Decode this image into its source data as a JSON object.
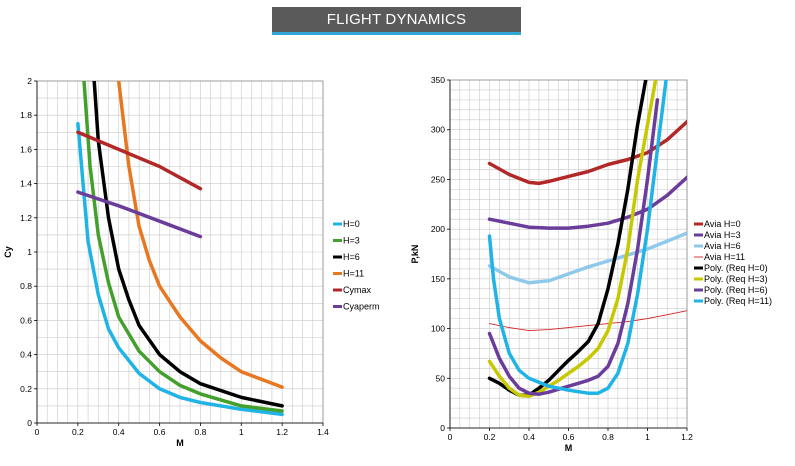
{
  "header": {
    "title": "FLIGHT DYNAMICS"
  },
  "chart_data": [
    {
      "type": "line",
      "xlabel": "M",
      "ylabel": "Cy",
      "xlim": [
        0,
        1.4
      ],
      "ylim": [
        0,
        2
      ],
      "xticks": [
        "0",
        "0.2",
        "0.4",
        "0.6",
        "0.8",
        "1",
        "1.2",
        "1.4"
      ],
      "yticks": [
        "0",
        "0.2",
        "0.4",
        "0.6",
        "0.8",
        "1",
        "1.2",
        "1.4",
        "1.6",
        "1.8",
        "2"
      ],
      "grid": true,
      "legend_position": "right",
      "series": [
        {
          "name": "H=0",
          "color": "#1fb3e6",
          "width": 3.5,
          "x": [
            0.2,
            0.25,
            0.3,
            0.35,
            0.4,
            0.5,
            0.6,
            0.7,
            0.8,
            1.0,
            1.2
          ],
          "y": [
            1.75,
            1.06,
            0.75,
            0.55,
            0.44,
            0.29,
            0.2,
            0.15,
            0.12,
            0.08,
            0.05
          ]
        },
        {
          "name": "H=3",
          "color": "#43a02d",
          "width": 3.5,
          "x": [
            0.23,
            0.26,
            0.3,
            0.35,
            0.4,
            0.5,
            0.6,
            0.7,
            0.8,
            1.0,
            1.2
          ],
          "y": [
            2.0,
            1.5,
            1.1,
            0.82,
            0.62,
            0.42,
            0.3,
            0.22,
            0.17,
            0.1,
            0.07
          ]
        },
        {
          "name": "H=6",
          "color": "#000000",
          "width": 3.5,
          "x": [
            0.28,
            0.3,
            0.35,
            0.4,
            0.45,
            0.5,
            0.6,
            0.7,
            0.8,
            1.0,
            1.2
          ],
          "y": [
            2.0,
            1.65,
            1.2,
            0.9,
            0.72,
            0.57,
            0.4,
            0.3,
            0.23,
            0.15,
            0.1
          ]
        },
        {
          "name": "H=11",
          "color": "#e87722",
          "width": 3.5,
          "x": [
            0.4,
            0.43,
            0.45,
            0.5,
            0.55,
            0.6,
            0.7,
            0.8,
            0.9,
            1.0,
            1.2
          ],
          "y": [
            2.0,
            1.7,
            1.5,
            1.15,
            0.95,
            0.8,
            0.62,
            0.48,
            0.38,
            0.3,
            0.21
          ]
        },
        {
          "name": "Cymax",
          "color": "#b22727",
          "width": 3.5,
          "x": [
            0.2,
            0.4,
            0.6,
            0.8
          ],
          "y": [
            1.7,
            1.6,
            1.5,
            1.37
          ]
        },
        {
          "name": "Cyaperm",
          "color": "#6a3d9a",
          "width": 3.5,
          "x": [
            0.2,
            0.4,
            0.6,
            0.8
          ],
          "y": [
            1.35,
            1.27,
            1.18,
            1.09
          ]
        }
      ]
    },
    {
      "type": "line",
      "xlabel": "M",
      "ylabel": "P,kN",
      "xlim": [
        0,
        1.2
      ],
      "ylim": [
        0,
        350
      ],
      "xticks": [
        "0",
        "0.2",
        "0.4",
        "0.6",
        "0.8",
        "1",
        "1.2"
      ],
      "yticks": [
        "0",
        "50",
        "100",
        "150",
        "200",
        "250",
        "300",
        "350"
      ],
      "grid": true,
      "legend_position": "right",
      "series": [
        {
          "name": "Avia H=0",
          "color": "#b22727",
          "width": 3.5,
          "x": [
            0.2,
            0.3,
            0.4,
            0.45,
            0.5,
            0.6,
            0.7,
            0.8,
            0.9,
            1.0,
            1.1,
            1.2
          ],
          "y": [
            266,
            255,
            247,
            246,
            248,
            253,
            258,
            265,
            270,
            277,
            290,
            308
          ]
        },
        {
          "name": "Avia H=3",
          "color": "#6a3d9a",
          "width": 3.5,
          "x": [
            0.2,
            0.3,
            0.4,
            0.5,
            0.6,
            0.7,
            0.8,
            0.9,
            1.0,
            1.1,
            1.2
          ],
          "y": [
            210,
            206,
            202,
            201,
            201,
            203,
            206,
            212,
            220,
            234,
            252
          ]
        },
        {
          "name": "Avia H=6",
          "color": "#8ec9ec",
          "width": 3.5,
          "x": [
            0.2,
            0.3,
            0.4,
            0.5,
            0.6,
            0.7,
            0.8,
            0.9,
            1.0,
            1.1,
            1.2
          ],
          "y": [
            163,
            152,
            146,
            148,
            155,
            162,
            168,
            174,
            180,
            188,
            196
          ]
        },
        {
          "name": "Avia H=11",
          "color": "#d62424",
          "width": 0.9,
          "x": [
            0.2,
            0.3,
            0.4,
            0.5,
            0.6,
            0.7,
            0.8,
            0.9,
            1.0,
            1.1,
            1.2
          ],
          "y": [
            105,
            101,
            98,
            99,
            101,
            103,
            105,
            107,
            110,
            114,
            118
          ]
        },
        {
          "name": "Poly. (Req H=0)",
          "color": "#000000",
          "width": 3.5,
          "x": [
            0.2,
            0.25,
            0.3,
            0.35,
            0.4,
            0.45,
            0.5,
            0.55,
            0.6,
            0.65,
            0.7,
            0.75,
            0.8,
            0.85,
            0.9,
            0.95,
            1.0
          ],
          "y": [
            50,
            45,
            38,
            33,
            33,
            40,
            48,
            58,
            68,
            77,
            87,
            105,
            140,
            185,
            240,
            305,
            360
          ]
        },
        {
          "name": "Poly. (Req H=3)",
          "color": "#c8c800",
          "width": 3.5,
          "x": [
            0.2,
            0.25,
            0.3,
            0.35,
            0.4,
            0.45,
            0.5,
            0.55,
            0.6,
            0.65,
            0.7,
            0.75,
            0.8,
            0.85,
            0.9,
            0.95,
            1.05
          ],
          "y": [
            67,
            52,
            40,
            33,
            32,
            36,
            42,
            48,
            55,
            62,
            70,
            80,
            98,
            130,
            180,
            250,
            360
          ]
        },
        {
          "name": "Poly. (Req H=6)",
          "color": "#6a3d9a",
          "width": 3.5,
          "x": [
            0.2,
            0.25,
            0.3,
            0.35,
            0.4,
            0.45,
            0.5,
            0.55,
            0.6,
            0.65,
            0.7,
            0.75,
            0.8,
            0.85,
            0.9,
            0.95,
            1.0,
            1.05
          ],
          "y": [
            95,
            70,
            52,
            40,
            35,
            34,
            36,
            39,
            42,
            45,
            48,
            52,
            62,
            85,
            125,
            180,
            250,
            330
          ]
        },
        {
          "name": "Poly. (Req H=11)",
          "color": "#1fb3e6",
          "width": 3.5,
          "x": [
            0.2,
            0.22,
            0.25,
            0.3,
            0.35,
            0.4,
            0.5,
            0.6,
            0.7,
            0.75,
            0.8,
            0.85,
            0.9,
            0.95,
            1.0,
            1.05,
            1.1
          ],
          "y": [
            193,
            150,
            110,
            75,
            58,
            50,
            42,
            38,
            35,
            35,
            40,
            55,
            85,
            135,
            200,
            280,
            360
          ]
        }
      ]
    }
  ]
}
